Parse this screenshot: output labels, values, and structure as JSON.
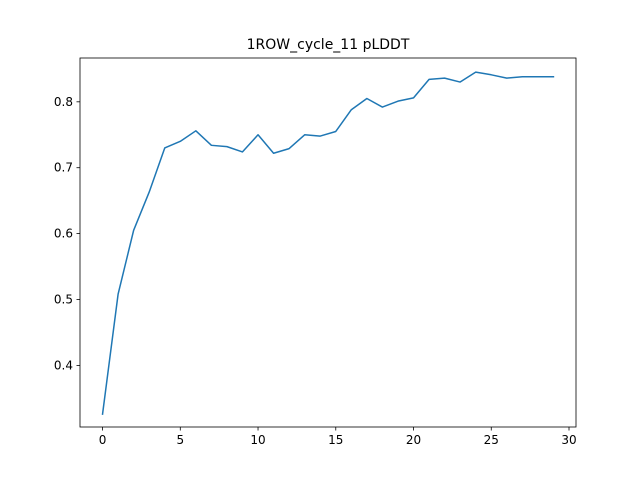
{
  "chart_data": {
    "type": "line",
    "title": "1ROW_cycle_11 pLDDT",
    "xlabel": "",
    "ylabel": "",
    "xlim": [
      -1.45,
      30.45
    ],
    "ylim": [
      0.3065,
      0.8665
    ],
    "xticks": [
      0,
      5,
      10,
      15,
      20,
      25,
      30
    ],
    "yticks": [
      0.4,
      0.5,
      0.6,
      0.7,
      0.8
    ],
    "grid": false,
    "line_color": "#1f77b4",
    "series": [
      {
        "x": [
          0,
          1,
          2,
          3,
          4,
          5,
          6,
          7,
          8,
          9,
          10,
          11,
          12,
          13,
          14,
          15,
          16,
          17,
          18,
          19,
          20,
          21,
          22,
          23,
          24,
          25,
          26,
          27,
          28,
          29
        ],
        "values": [
          0.326,
          0.508,
          0.605,
          0.663,
          0.73,
          0.74,
          0.756,
          0.734,
          0.732,
          0.724,
          0.75,
          0.722,
          0.729,
          0.75,
          0.748,
          0.755,
          0.788,
          0.805,
          0.792,
          0.801,
          0.806,
          0.834,
          0.836,
          0.83,
          0.845,
          0.841,
          0.836,
          0.838,
          0.838,
          0.838
        ]
      }
    ]
  }
}
